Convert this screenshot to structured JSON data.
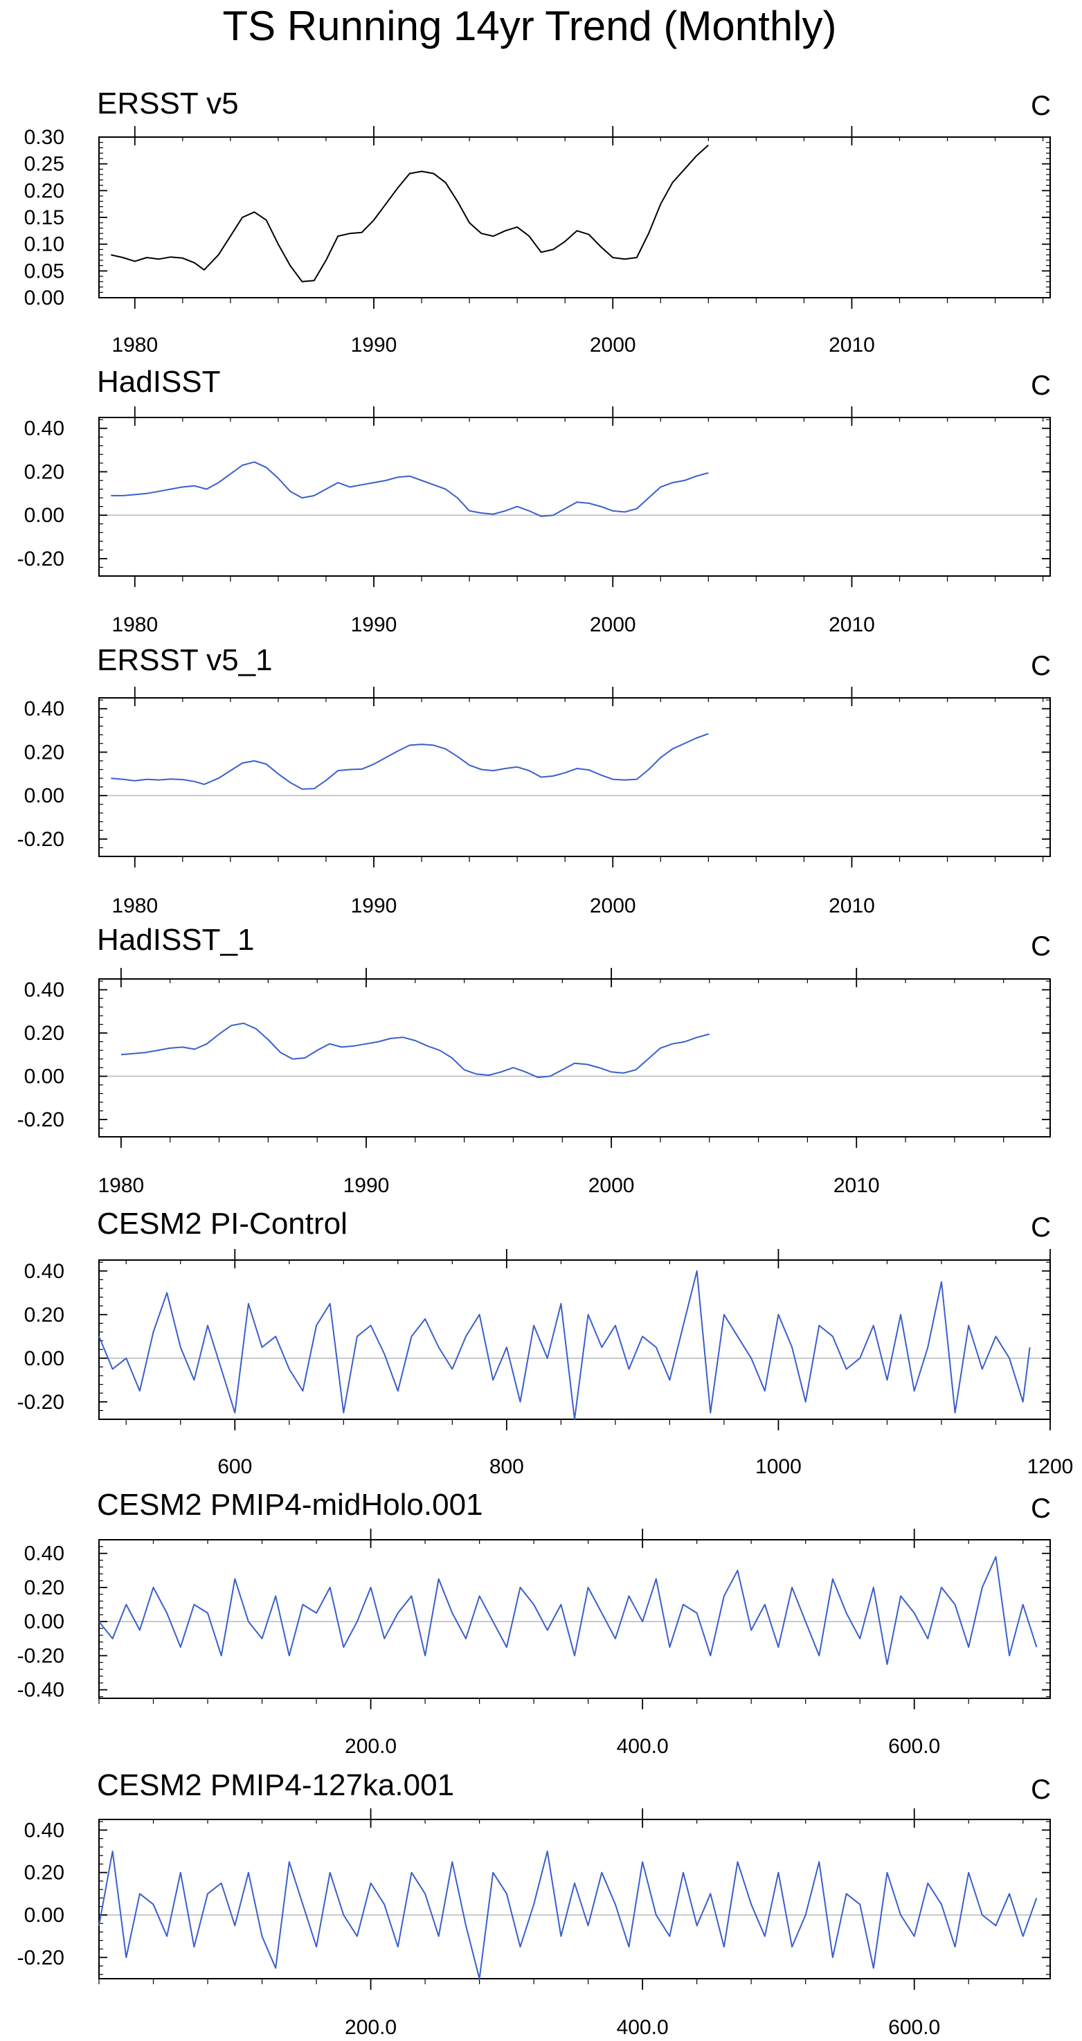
{
  "figure_title": "TS Running 14yr Trend (Monthly)",
  "chart_data": [
    {
      "type": "line",
      "title": "ERSST v5",
      "units": "C",
      "color": "#000000",
      "xlim": [
        1978.5,
        2018.3
      ],
      "ylim": [
        0,
        0.3
      ],
      "yticks": [
        0,
        0.05,
        0.1,
        0.15,
        0.2,
        0.25,
        0.3
      ],
      "yticklabels": [
        "0.00",
        "0.05",
        "0.10",
        "0.15",
        "0.20",
        "0.25",
        "0.30"
      ],
      "xticks": [
        1980,
        1990,
        2000,
        2010
      ],
      "xticklabels": [
        "1980",
        "1990",
        "2000",
        "2010"
      ],
      "zero_line": false,
      "x": [
        1979.0,
        1979.5,
        1980.0,
        1980.5,
        1981.0,
        1981.5,
        1982.0,
        1982.5,
        1982.9,
        1983.5,
        1984.0,
        1984.5,
        1985.0,
        1985.5,
        1986.0,
        1986.5,
        1987.0,
        1987.5,
        1988.0,
        1988.5,
        1989.0,
        1989.5,
        1990.0,
        1990.5,
        1991.0,
        1991.5,
        1992.0,
        1992.5,
        1993.0,
        1993.5,
        1994.0,
        1994.5,
        1995.0,
        1995.5,
        1996.0,
        1996.5,
        1997.0,
        1997.5,
        1998.0,
        1998.5,
        1999.0,
        1999.5,
        2000.0,
        2000.5,
        2001.0,
        2001.5,
        2002.0,
        2002.5,
        2003.0,
        2003.5,
        2004.0
      ],
      "y": [
        0.08,
        0.075,
        0.068,
        0.075,
        0.072,
        0.076,
        0.074,
        0.065,
        0.052,
        0.08,
        0.115,
        0.15,
        0.16,
        0.145,
        0.1,
        0.06,
        0.03,
        0.032,
        0.07,
        0.115,
        0.12,
        0.122,
        0.145,
        0.175,
        0.205,
        0.232,
        0.236,
        0.232,
        0.215,
        0.18,
        0.14,
        0.12,
        0.115,
        0.125,
        0.132,
        0.115,
        0.085,
        0.09,
        0.105,
        0.125,
        0.118,
        0.095,
        0.075,
        0.072,
        0.075,
        0.12,
        0.175,
        0.215,
        0.24,
        0.265,
        0.285
      ]
    },
    {
      "type": "line",
      "title": "HadISST",
      "units": "C",
      "color": "#3a5fcd",
      "xlim": [
        1978.5,
        2018.3
      ],
      "ylim": [
        -0.28,
        0.45
      ],
      "yticks": [
        -0.2,
        0,
        0.2,
        0.4
      ],
      "yticklabels": [
        "-0.20",
        "0.00",
        "0.20",
        "0.40"
      ],
      "xticks": [
        1980,
        1990,
        2000,
        2010
      ],
      "xticklabels": [
        "1980",
        "1990",
        "2000",
        "2010"
      ],
      "zero_line": true,
      "x": [
        1979.0,
        1979.5,
        1980.0,
        1980.5,
        1981.0,
        1981.5,
        1982.0,
        1982.5,
        1983.0,
        1983.5,
        1984.0,
        1984.5,
        1985.0,
        1985.5,
        1986.0,
        1986.5,
        1987.0,
        1987.5,
        1988.0,
        1988.5,
        1989.0,
        1989.5,
        1990.0,
        1990.5,
        1991.0,
        1991.5,
        1992.0,
        1992.5,
        1993.0,
        1993.5,
        1994.0,
        1994.5,
        1995.0,
        1995.5,
        1996.0,
        1996.5,
        1997.0,
        1997.5,
        1998.0,
        1998.5,
        1999.0,
        1999.5,
        2000.0,
        2000.5,
        2001.0,
        2001.5,
        2002.0,
        2002.5,
        2003.0,
        2003.5,
        2004.0
      ],
      "y": [
        0.09,
        0.09,
        0.095,
        0.1,
        0.11,
        0.12,
        0.13,
        0.135,
        0.12,
        0.15,
        0.19,
        0.23,
        0.245,
        0.22,
        0.17,
        0.11,
        0.08,
        0.09,
        0.12,
        0.15,
        0.13,
        0.14,
        0.15,
        0.16,
        0.175,
        0.18,
        0.16,
        0.14,
        0.12,
        0.08,
        0.02,
        0.01,
        0.005,
        0.02,
        0.04,
        0.02,
        -0.005,
        0.0,
        0.03,
        0.06,
        0.055,
        0.04,
        0.02,
        0.015,
        0.03,
        0.08,
        0.13,
        0.15,
        0.16,
        0.18,
        0.195
      ]
    },
    {
      "type": "line",
      "title": "ERSST v5_1",
      "units": "C",
      "color": "#3a5fcd",
      "xlim": [
        1978.5,
        2018.3
      ],
      "ylim": [
        -0.28,
        0.45
      ],
      "yticks": [
        -0.2,
        0,
        0.2,
        0.4
      ],
      "yticklabels": [
        "-0.20",
        "0.00",
        "0.20",
        "0.40"
      ],
      "xticks": [
        1980,
        1990,
        2000,
        2010
      ],
      "xticklabels": [
        "1980",
        "1990",
        "2000",
        "2010"
      ],
      "zero_line": true,
      "x": [
        1979.0,
        1979.5,
        1980.0,
        1980.5,
        1981.0,
        1981.5,
        1982.0,
        1982.5,
        1982.9,
        1983.5,
        1984.0,
        1984.5,
        1985.0,
        1985.5,
        1986.0,
        1986.5,
        1987.0,
        1987.5,
        1988.0,
        1988.5,
        1989.0,
        1989.5,
        1990.0,
        1990.5,
        1991.0,
        1991.5,
        1992.0,
        1992.5,
        1993.0,
        1993.5,
        1994.0,
        1994.5,
        1995.0,
        1995.5,
        1996.0,
        1996.5,
        1997.0,
        1997.5,
        1998.0,
        1998.5,
        1999.0,
        1999.5,
        2000.0,
        2000.5,
        2001.0,
        2001.5,
        2002.0,
        2002.5,
        2003.0,
        2003.5,
        2004.0
      ],
      "y": [
        0.08,
        0.075,
        0.068,
        0.075,
        0.072,
        0.076,
        0.074,
        0.065,
        0.052,
        0.08,
        0.115,
        0.15,
        0.16,
        0.145,
        0.1,
        0.06,
        0.03,
        0.032,
        0.07,
        0.115,
        0.12,
        0.122,
        0.145,
        0.175,
        0.205,
        0.232,
        0.236,
        0.232,
        0.215,
        0.18,
        0.14,
        0.12,
        0.115,
        0.125,
        0.132,
        0.115,
        0.085,
        0.09,
        0.105,
        0.125,
        0.118,
        0.095,
        0.075,
        0.072,
        0.075,
        0.12,
        0.175,
        0.215,
        0.24,
        0.265,
        0.285
      ]
    },
    {
      "type": "line",
      "title": "HadISST_1",
      "units": "C",
      "color": "#3a5fcd",
      "xlim": [
        1979.1,
        2017.9
      ],
      "ylim": [
        -0.28,
        0.45
      ],
      "yticks": [
        -0.2,
        0,
        0.2,
        0.4
      ],
      "yticklabels": [
        "-0.20",
        "0.00",
        "0.20",
        "0.40"
      ],
      "xticks": [
        1980,
        1990,
        2000,
        2010
      ],
      "xticklabels": [
        "1980",
        "1990",
        "2000",
        "2010"
      ],
      "zero_line": true,
      "x": [
        1980.0,
        1980.5,
        1981.0,
        1981.5,
        1982.0,
        1982.5,
        1983.0,
        1983.5,
        1984.0,
        1984.5,
        1985.0,
        1985.5,
        1986.0,
        1986.5,
        1987.0,
        1987.5,
        1988.0,
        1988.5,
        1989.0,
        1989.5,
        1990.0,
        1990.5,
        1991.0,
        1991.5,
        1992.0,
        1992.5,
        1993.0,
        1993.5,
        1994.0,
        1994.5,
        1995.0,
        1995.5,
        1996.0,
        1996.5,
        1997.0,
        1997.5,
        1998.0,
        1998.5,
        1999.0,
        1999.5,
        2000.0,
        2000.5,
        2001.0,
        2001.5,
        2002.0,
        2002.5,
        2003.0,
        2003.5,
        2004.0
      ],
      "y": [
        0.1,
        0.105,
        0.11,
        0.12,
        0.13,
        0.135,
        0.125,
        0.15,
        0.195,
        0.235,
        0.245,
        0.22,
        0.17,
        0.11,
        0.08,
        0.085,
        0.12,
        0.15,
        0.135,
        0.14,
        0.15,
        0.16,
        0.175,
        0.18,
        0.165,
        0.14,
        0.12,
        0.085,
        0.03,
        0.01,
        0.005,
        0.02,
        0.04,
        0.02,
        -0.005,
        0.0,
        0.03,
        0.06,
        0.055,
        0.04,
        0.02,
        0.015,
        0.03,
        0.08,
        0.13,
        0.15,
        0.16,
        0.18,
        0.195
      ]
    },
    {
      "type": "line",
      "title": "CESM2 PI-Control",
      "units": "C",
      "color": "#3a5fcd",
      "xlim": [
        500,
        1200
      ],
      "ylim": [
        -0.28,
        0.45
      ],
      "yticks": [
        -0.2,
        0,
        0.2,
        0.4
      ],
      "yticklabels": [
        "-0.20",
        "0.00",
        "0.20",
        "0.40"
      ],
      "xticks": [
        600,
        800,
        1000,
        1200
      ],
      "xticklabels": [
        "600",
        "800",
        "1000",
        "1200"
      ],
      "zero_line": true,
      "x": [
        500,
        510,
        520,
        530,
        540,
        550,
        560,
        570,
        580,
        590,
        600,
        610,
        620,
        630,
        640,
        650,
        660,
        670,
        680,
        690,
        700,
        710,
        720,
        730,
        740,
        750,
        760,
        770,
        780,
        790,
        800,
        810,
        820,
        830,
        840,
        850,
        860,
        870,
        880,
        890,
        900,
        910,
        920,
        930,
        940,
        950,
        960,
        970,
        980,
        990,
        1000,
        1010,
        1020,
        1030,
        1040,
        1050,
        1060,
        1070,
        1080,
        1090,
        1100,
        1110,
        1120,
        1130,
        1140,
        1150,
        1160,
        1170,
        1180,
        1185
      ],
      "y": [
        0.1,
        -0.05,
        0.0,
        -0.15,
        0.12,
        0.3,
        0.05,
        -0.1,
        0.15,
        -0.05,
        -0.25,
        0.25,
        0.05,
        0.1,
        -0.05,
        -0.15,
        0.15,
        0.25,
        -0.25,
        0.1,
        0.15,
        0.02,
        -0.15,
        0.1,
        0.18,
        0.05,
        -0.05,
        0.1,
        0.2,
        -0.1,
        0.05,
        -0.2,
        0.15,
        0.0,
        0.25,
        -0.28,
        0.2,
        0.05,
        0.15,
        -0.05,
        0.1,
        0.05,
        -0.1,
        0.15,
        0.4,
        -0.25,
        0.2,
        0.1,
        0.0,
        -0.15,
        0.2,
        0.05,
        -0.2,
        0.15,
        0.1,
        -0.05,
        0.0,
        0.15,
        -0.1,
        0.2,
        -0.15,
        0.05,
        0.35,
        -0.25,
        0.15,
        -0.05,
        0.1,
        0.0,
        -0.2,
        0.05
      ]
    },
    {
      "type": "line",
      "title": "CESM2 PMIP4-midHolo.001",
      "units": "C",
      "color": "#3a5fcd",
      "xlim": [
        0,
        700
      ],
      "ylim": [
        -0.45,
        0.48
      ],
      "yticks": [
        -0.4,
        -0.2,
        0,
        0.2,
        0.4
      ],
      "yticklabels": [
        "-0.40",
        "-0.20",
        "0.00",
        "0.20",
        "0.40"
      ],
      "xticks": [
        200,
        400,
        600
      ],
      "xticklabels": [
        "200.0",
        "400.0",
        "600.0"
      ],
      "zero_line": true,
      "x": [
        0,
        10,
        20,
        30,
        40,
        50,
        60,
        70,
        80,
        90,
        100,
        110,
        120,
        130,
        140,
        150,
        160,
        170,
        180,
        190,
        200,
        210,
        220,
        230,
        240,
        250,
        260,
        270,
        280,
        290,
        300,
        310,
        320,
        330,
        340,
        350,
        360,
        370,
        380,
        390,
        400,
        410,
        420,
        430,
        440,
        450,
        460,
        470,
        480,
        490,
        500,
        510,
        520,
        530,
        540,
        550,
        560,
        570,
        580,
        590,
        600,
        610,
        620,
        630,
        640,
        650,
        660,
        670,
        680,
        690
      ],
      "y": [
        0.0,
        -0.1,
        0.1,
        -0.05,
        0.2,
        0.05,
        -0.15,
        0.1,
        0.05,
        -0.2,
        0.25,
        0.0,
        -0.1,
        0.15,
        -0.2,
        0.1,
        0.05,
        0.2,
        -0.15,
        0.0,
        0.2,
        -0.1,
        0.05,
        0.15,
        -0.2,
        0.25,
        0.05,
        -0.1,
        0.15,
        0.0,
        -0.15,
        0.2,
        0.1,
        -0.05,
        0.1,
        -0.2,
        0.2,
        0.05,
        -0.1,
        0.15,
        0.0,
        0.25,
        -0.15,
        0.1,
        0.05,
        -0.2,
        0.15,
        0.3,
        -0.05,
        0.1,
        -0.15,
        0.2,
        0.0,
        -0.2,
        0.25,
        0.05,
        -0.1,
        0.2,
        -0.25,
        0.15,
        0.05,
        -0.1,
        0.2,
        0.1,
        -0.15,
        0.2,
        0.38,
        -0.2,
        0.1,
        -0.15
      ]
    },
    {
      "type": "line",
      "title": "CESM2 PMIP4-127ka.001",
      "units": "C",
      "color": "#3a5fcd",
      "xlim": [
        0,
        700
      ],
      "ylim": [
        -0.3,
        0.45
      ],
      "yticks": [
        -0.2,
        0,
        0.2,
        0.4
      ],
      "yticklabels": [
        "-0.20",
        "0.00",
        "0.20",
        "0.40"
      ],
      "xticks": [
        200,
        400,
        600
      ],
      "xticklabels": [
        "200.0",
        "400.0",
        "600.0"
      ],
      "zero_line": true,
      "x": [
        0,
        10,
        20,
        30,
        40,
        50,
        60,
        70,
        80,
        90,
        100,
        110,
        120,
        130,
        140,
        150,
        160,
        170,
        180,
        190,
        200,
        210,
        220,
        230,
        240,
        250,
        260,
        270,
        280,
        290,
        300,
        310,
        320,
        330,
        340,
        350,
        360,
        370,
        380,
        390,
        400,
        410,
        420,
        430,
        440,
        450,
        460,
        470,
        480,
        490,
        500,
        510,
        520,
        530,
        540,
        550,
        560,
        570,
        580,
        590,
        600,
        610,
        620,
        630,
        640,
        650,
        660,
        670,
        680,
        690
      ],
      "y": [
        -0.05,
        0.3,
        -0.2,
        0.1,
        0.05,
        -0.1,
        0.2,
        -0.15,
        0.1,
        0.15,
        -0.05,
        0.2,
        -0.1,
        -0.25,
        0.25,
        0.05,
        -0.15,
        0.2,
        0.0,
        -0.1,
        0.15,
        0.05,
        -0.15,
        0.2,
        0.1,
        -0.1,
        0.25,
        -0.05,
        -0.3,
        0.2,
        0.1,
        -0.15,
        0.05,
        0.3,
        -0.1,
        0.15,
        -0.05,
        0.2,
        0.05,
        -0.15,
        0.25,
        0.0,
        -0.1,
        0.2,
        -0.05,
        0.1,
        -0.15,
        0.25,
        0.05,
        -0.1,
        0.2,
        -0.15,
        0.0,
        0.25,
        -0.2,
        0.1,
        0.05,
        -0.25,
        0.2,
        0.0,
        -0.1,
        0.15,
        0.05,
        -0.15,
        0.2,
        0.0,
        -0.05,
        0.1,
        -0.1,
        0.08
      ]
    }
  ]
}
